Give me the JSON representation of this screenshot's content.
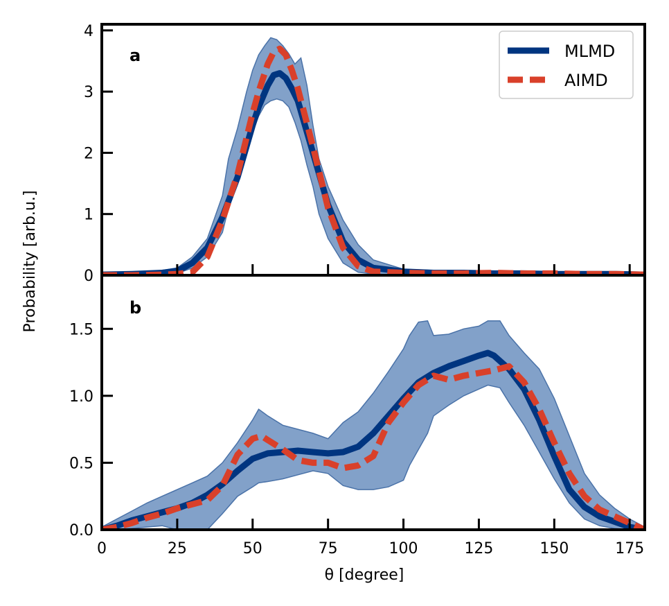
{
  "figure": {
    "ylabel": "Probability [arb.u.]",
    "xlabel": "θ [degree]"
  },
  "colors": {
    "mlmd": "#003580",
    "aimd": "#d9402a",
    "band": "#7b9cc6",
    "band_edge": "#4a72a8"
  },
  "chart_data": [
    {
      "type": "line",
      "panel_label": "a",
      "xlim": [
        0,
        180
      ],
      "ylim": [
        0,
        4.1
      ],
      "x_ticks": [
        0,
        25,
        50,
        75,
        100,
        125,
        150,
        175
      ],
      "y_ticks": [
        0,
        1,
        2,
        3,
        4
      ],
      "y_tick_labels": [
        "0",
        "1",
        "2",
        "3",
        "4"
      ],
      "legend": {
        "position": "top-right",
        "entries": [
          "MLMD",
          "AIMD"
        ]
      },
      "series": [
        {
          "name": "MLMD",
          "x": [
            0,
            10,
            20,
            25,
            30,
            35,
            40,
            45,
            50,
            52,
            55,
            57,
            59,
            61,
            63,
            65,
            70,
            75,
            80,
            85,
            90,
            100,
            110,
            120,
            130,
            140,
            150,
            160,
            170,
            180
          ],
          "y": [
            0.01,
            0.02,
            0.04,
            0.07,
            0.2,
            0.45,
            0.95,
            1.6,
            2.45,
            2.75,
            3.1,
            3.27,
            3.3,
            3.22,
            3.05,
            2.85,
            2.0,
            1.15,
            0.55,
            0.25,
            0.12,
            0.06,
            0.04,
            0.04,
            0.03,
            0.03,
            0.02,
            0.02,
            0.02,
            0.01
          ]
        },
        {
          "name": "AIMD",
          "x": [
            0,
            10,
            20,
            25,
            30,
            35,
            40,
            45,
            50,
            52,
            55,
            57,
            59,
            61,
            63,
            65,
            70,
            75,
            80,
            85,
            90,
            100,
            110,
            120,
            130,
            140,
            150,
            160,
            170,
            180
          ],
          "y": [
            0.0,
            0.0,
            0.01,
            0.02,
            0.05,
            0.3,
            0.9,
            1.65,
            2.65,
            3.0,
            3.45,
            3.65,
            3.7,
            3.6,
            3.35,
            3.05,
            2.1,
            1.1,
            0.45,
            0.15,
            0.06,
            0.04,
            0.03,
            0.03,
            0.04,
            0.03,
            0.03,
            0.02,
            0.02,
            0.01
          ]
        }
      ],
      "band": {
        "x": [
          0,
          10,
          20,
          25,
          30,
          35,
          40,
          42,
          45,
          48,
          50,
          52,
          54,
          56,
          58,
          60,
          62,
          64,
          66,
          68,
          70,
          72,
          75,
          80,
          85,
          90,
          100,
          120,
          150,
          180
        ],
        "upper": [
          0.02,
          0.04,
          0.08,
          0.12,
          0.3,
          0.6,
          1.3,
          1.9,
          2.4,
          3.0,
          3.35,
          3.6,
          3.75,
          3.88,
          3.85,
          3.75,
          3.62,
          3.45,
          3.55,
          3.1,
          2.45,
          1.9,
          1.45,
          0.9,
          0.5,
          0.25,
          0.1,
          0.06,
          0.04,
          0.02
        ],
        "lower": [
          0.0,
          0.0,
          0.01,
          0.03,
          0.12,
          0.3,
          0.7,
          1.1,
          1.5,
          2.0,
          2.35,
          2.6,
          2.78,
          2.85,
          2.88,
          2.85,
          2.75,
          2.5,
          2.2,
          1.8,
          1.45,
          1.0,
          0.6,
          0.2,
          0.05,
          0.02,
          0.01,
          0.0,
          0.0,
          0.0
        ]
      }
    },
    {
      "type": "line",
      "panel_label": "b",
      "xlim": [
        0,
        180
      ],
      "ylim": [
        0,
        1.9
      ],
      "x_ticks": [
        0,
        25,
        50,
        75,
        100,
        125,
        150,
        175
      ],
      "x_tick_labels": [
        "0",
        "25",
        "50",
        "75",
        "100",
        "125",
        "150",
        "175"
      ],
      "y_ticks": [
        0,
        0.5,
        1.0,
        1.5
      ],
      "y_tick_labels": [
        "0.0",
        "0.5",
        "1.0",
        "1.5"
      ],
      "series": [
        {
          "name": "MLMD",
          "x": [
            0,
            5,
            10,
            15,
            20,
            25,
            30,
            35,
            40,
            45,
            50,
            55,
            60,
            65,
            70,
            75,
            80,
            85,
            90,
            95,
            100,
            105,
            110,
            115,
            120,
            125,
            128,
            130,
            135,
            140,
            145,
            150,
            155,
            160,
            165,
            170,
            175,
            180
          ],
          "y": [
            0.0,
            0.03,
            0.07,
            0.1,
            0.13,
            0.16,
            0.2,
            0.26,
            0.34,
            0.44,
            0.53,
            0.57,
            0.58,
            0.59,
            0.58,
            0.57,
            0.58,
            0.62,
            0.72,
            0.85,
            0.98,
            1.1,
            1.17,
            1.22,
            1.26,
            1.3,
            1.32,
            1.3,
            1.2,
            1.05,
            0.82,
            0.55,
            0.3,
            0.17,
            0.1,
            0.06,
            0.02,
            0.0
          ]
        },
        {
          "name": "AIMD",
          "x": [
            0,
            5,
            10,
            15,
            20,
            25,
            30,
            35,
            40,
            45,
            50,
            53,
            55,
            60,
            65,
            70,
            75,
            80,
            85,
            90,
            95,
            100,
            105,
            110,
            115,
            120,
            125,
            130,
            135,
            140,
            145,
            150,
            155,
            160,
            165,
            170,
            175,
            180
          ],
          "y": [
            0.0,
            0.02,
            0.05,
            0.09,
            0.12,
            0.16,
            0.19,
            0.22,
            0.33,
            0.56,
            0.68,
            0.7,
            0.67,
            0.6,
            0.52,
            0.5,
            0.5,
            0.46,
            0.48,
            0.55,
            0.8,
            0.95,
            1.08,
            1.15,
            1.12,
            1.15,
            1.17,
            1.19,
            1.22,
            1.1,
            0.9,
            0.65,
            0.42,
            0.25,
            0.15,
            0.1,
            0.05,
            0.0
          ]
        }
      ],
      "band": {
        "x": [
          0,
          5,
          10,
          15,
          20,
          25,
          30,
          35,
          40,
          45,
          50,
          52,
          55,
          60,
          65,
          70,
          75,
          80,
          85,
          90,
          95,
          100,
          102,
          105,
          108,
          110,
          115,
          120,
          125,
          128,
          132,
          135,
          140,
          145,
          150,
          155,
          160,
          165,
          170,
          175,
          180
        ],
        "upper": [
          0.02,
          0.08,
          0.14,
          0.2,
          0.25,
          0.3,
          0.35,
          0.4,
          0.5,
          0.65,
          0.82,
          0.9,
          0.85,
          0.78,
          0.75,
          0.72,
          0.68,
          0.8,
          0.88,
          1.02,
          1.18,
          1.35,
          1.45,
          1.55,
          1.56,
          1.45,
          1.46,
          1.5,
          1.52,
          1.56,
          1.56,
          1.45,
          1.32,
          1.2,
          0.98,
          0.7,
          0.42,
          0.26,
          0.16,
          0.08,
          0.02
        ],
        "lower": [
          0.0,
          0.0,
          0.01,
          0.02,
          0.03,
          0.0,
          0.0,
          0.0,
          0.12,
          0.25,
          0.32,
          0.35,
          0.36,
          0.38,
          0.41,
          0.44,
          0.42,
          0.33,
          0.3,
          0.3,
          0.32,
          0.37,
          0.48,
          0.6,
          0.72,
          0.85,
          0.93,
          1.0,
          1.05,
          1.08,
          1.06,
          0.95,
          0.78,
          0.58,
          0.38,
          0.2,
          0.08,
          0.03,
          0.01,
          0.0,
          0.0
        ]
      }
    }
  ]
}
